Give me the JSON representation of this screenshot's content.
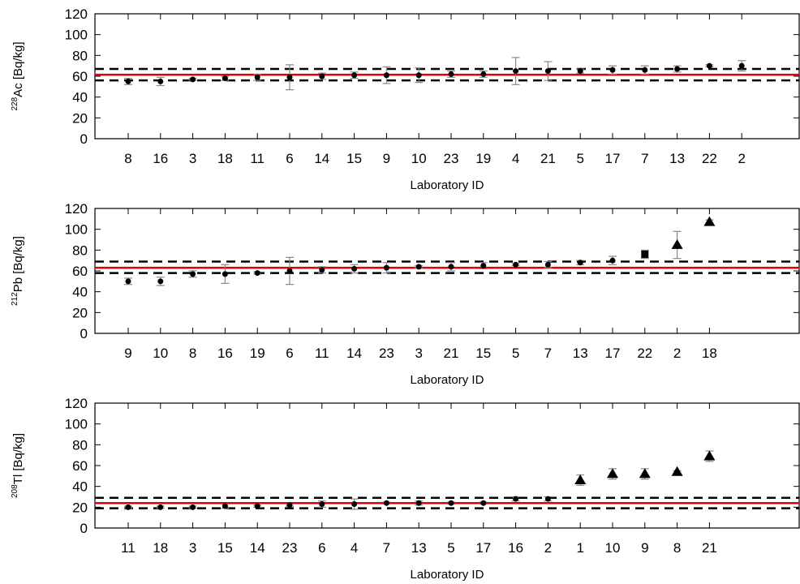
{
  "chart_data": [
    {
      "type": "scatter",
      "ylabel_sup": "228",
      "ylabel_main": "Ac [Bq/kg]",
      "xlabel": "Laboratory ID",
      "ylim": [
        0,
        120
      ],
      "yticks": [
        0,
        20,
        40,
        60,
        80,
        100,
        120
      ],
      "reference": {
        "mean": 61.5,
        "lower": 56,
        "upper": 67
      },
      "colors": {
        "reference": "#e00000",
        "bounds": "#000000",
        "error": "#888888",
        "marker": "#000000"
      },
      "points": [
        {
          "id": "8",
          "y": 55,
          "err": 3,
          "marker": "circle"
        },
        {
          "id": "16",
          "y": 55,
          "err": 4,
          "marker": "circle"
        },
        {
          "id": "3",
          "y": 57,
          "err": 1,
          "marker": "circle"
        },
        {
          "id": "18",
          "y": 58,
          "err": 2,
          "marker": "circle"
        },
        {
          "id": "11",
          "y": 59,
          "err": 3,
          "marker": "circle"
        },
        {
          "id": "6",
          "y": 59,
          "err": 12,
          "marker": "circle"
        },
        {
          "id": "14",
          "y": 60,
          "err": 3,
          "marker": "circle"
        },
        {
          "id": "15",
          "y": 61,
          "err": 3,
          "marker": "circle"
        },
        {
          "id": "9",
          "y": 61,
          "err": 8,
          "marker": "circle"
        },
        {
          "id": "10",
          "y": 61,
          "err": 7,
          "marker": "circle"
        },
        {
          "id": "23",
          "y": 62,
          "err": 3,
          "marker": "circle"
        },
        {
          "id": "19",
          "y": 62,
          "err": 3,
          "marker": "circle"
        },
        {
          "id": "4",
          "y": 65,
          "err": 13,
          "marker": "circle"
        },
        {
          "id": "21",
          "y": 65,
          "err": 9,
          "marker": "circle"
        },
        {
          "id": "5",
          "y": 65,
          "err": 2,
          "marker": "circle"
        },
        {
          "id": "17",
          "y": 66,
          "err": 4,
          "marker": "circle"
        },
        {
          "id": "7",
          "y": 66,
          "err": 4,
          "marker": "circle"
        },
        {
          "id": "13",
          "y": 67,
          "err": 3,
          "marker": "circle"
        },
        {
          "id": "22",
          "y": 70,
          "err": 1,
          "marker": "circle"
        },
        {
          "id": "2",
          "y": 70,
          "err": 5,
          "marker": "circle"
        }
      ]
    },
    {
      "type": "scatter",
      "ylabel_sup": "212",
      "ylabel_main": "Pb [Bq/kg]",
      "xlabel": "Laboratory ID",
      "ylim": [
        0,
        120
      ],
      "yticks": [
        0,
        20,
        40,
        60,
        80,
        100,
        120
      ],
      "reference": {
        "mean": 63,
        "lower": 58,
        "upper": 69
      },
      "colors": {
        "reference": "#e00000",
        "bounds": "#000000",
        "error": "#888888",
        "marker": "#000000"
      },
      "points": [
        {
          "id": "9",
          "y": 50,
          "err": 3,
          "marker": "circle"
        },
        {
          "id": "10",
          "y": 50,
          "err": 4,
          "marker": "circle"
        },
        {
          "id": "8",
          "y": 57,
          "err": 3,
          "marker": "circle"
        },
        {
          "id": "16",
          "y": 57,
          "err": 9,
          "marker": "circle"
        },
        {
          "id": "19",
          "y": 58,
          "err": 1,
          "marker": "circle"
        },
        {
          "id": "6",
          "y": 60,
          "err": 13,
          "marker": "circle"
        },
        {
          "id": "11",
          "y": 61,
          "err": 3,
          "marker": "circle"
        },
        {
          "id": "14",
          "y": 62,
          "err": 4,
          "marker": "circle"
        },
        {
          "id": "23",
          "y": 63,
          "err": 5,
          "marker": "circle"
        },
        {
          "id": "3",
          "y": 64,
          "err": 1,
          "marker": "circle"
        },
        {
          "id": "21",
          "y": 64,
          "err": 4,
          "marker": "circle"
        },
        {
          "id": "15",
          "y": 65,
          "err": 3,
          "marker": "circle"
        },
        {
          "id": "5",
          "y": 66,
          "err": 1,
          "marker": "circle"
        },
        {
          "id": "7",
          "y": 66,
          "err": 3,
          "marker": "circle"
        },
        {
          "id": "13",
          "y": 68,
          "err": 2,
          "marker": "circle"
        },
        {
          "id": "17",
          "y": 70,
          "err": 4,
          "marker": "circle"
        },
        {
          "id": "22",
          "y": 76,
          "err": 4,
          "marker": "square"
        },
        {
          "id": "2",
          "y": 85,
          "err": 13,
          "marker": "triangle"
        },
        {
          "id": "18",
          "y": 107,
          "err": 2,
          "marker": "triangle"
        }
      ]
    },
    {
      "type": "scatter",
      "ylabel_sup": "208",
      "ylabel_main": "Tl [Bq/kg]",
      "xlabel": "Laboratory ID",
      "ylim": [
        0,
        120
      ],
      "yticks": [
        0,
        20,
        40,
        60,
        80,
        100,
        120
      ],
      "reference": {
        "mean": 24,
        "lower": 19,
        "upper": 29
      },
      "colors": {
        "reference": "#e00000",
        "bounds": "#000000",
        "error": "#888888",
        "marker": "#000000"
      },
      "points": [
        {
          "id": "11",
          "y": 20,
          "err": 1,
          "marker": "circle"
        },
        {
          "id": "18",
          "y": 20,
          "err": 1,
          "marker": "circle"
        },
        {
          "id": "3",
          "y": 20,
          "err": 1,
          "marker": "circle"
        },
        {
          "id": "15",
          "y": 21,
          "err": 2,
          "marker": "circle"
        },
        {
          "id": "14",
          "y": 21,
          "err": 1,
          "marker": "circle"
        },
        {
          "id": "23",
          "y": 22,
          "err": 1,
          "marker": "circle"
        },
        {
          "id": "6",
          "y": 23,
          "err": 3,
          "marker": "circle"
        },
        {
          "id": "4",
          "y": 23,
          "err": 5,
          "marker": "circle"
        },
        {
          "id": "7",
          "y": 24,
          "err": 1,
          "marker": "circle"
        },
        {
          "id": "13",
          "y": 24,
          "err": 2,
          "marker": "circle"
        },
        {
          "id": "5",
          "y": 24,
          "err": 1,
          "marker": "circle"
        },
        {
          "id": "17",
          "y": 24,
          "err": 1,
          "marker": "circle"
        },
        {
          "id": "16",
          "y": 28,
          "err": 2,
          "marker": "circle"
        },
        {
          "id": "2",
          "y": 28,
          "err": 2,
          "marker": "circle"
        },
        {
          "id": "1",
          "y": 46,
          "err": 5,
          "marker": "triangle"
        },
        {
          "id": "10",
          "y": 52,
          "err": 5,
          "marker": "triangle"
        },
        {
          "id": "9",
          "y": 52,
          "err": 5,
          "marker": "triangle"
        },
        {
          "id": "8",
          "y": 54,
          "err": 1,
          "marker": "triangle"
        },
        {
          "id": "21",
          "y": 69,
          "err": 5,
          "marker": "triangle"
        }
      ]
    }
  ]
}
